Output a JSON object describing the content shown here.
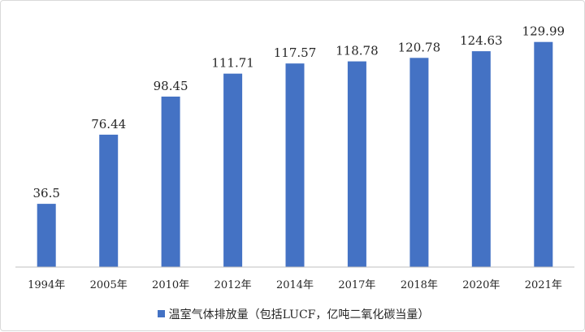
{
  "chart_data": {
    "type": "bar",
    "categories": [
      "1994年",
      "2005年",
      "2010年",
      "2012年",
      "2014年",
      "2017年",
      "2018年",
      "2020年",
      "2021年"
    ],
    "series": [
      {
        "name": "温室气体排放量（包括LUCF，亿吨二氧化碳当量）",
        "values": [
          36.5,
          76.44,
          98.45,
          111.71,
          117.57,
          118.78,
          120.78,
          124.63,
          129.99
        ],
        "labels": [
          "36.5",
          "76.44",
          "98.45",
          "111.71",
          "117.57",
          "118.78",
          "120.78",
          "124.63",
          "129.99"
        ]
      }
    ],
    "title": "",
    "xlabel": "",
    "ylabel": "",
    "ylim": [
      0,
      135
    ],
    "grid": false,
    "legend": "bottom",
    "colors": {
      "bar": "#4472c4",
      "axis": "#bfbfbf",
      "text": "#262626"
    }
  }
}
